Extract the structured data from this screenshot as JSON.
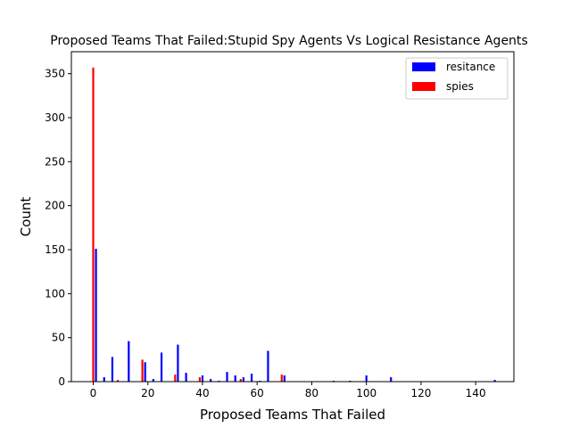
{
  "chart_data": {
    "type": "bar",
    "title": "Proposed Teams That Failed:Stupid Spy Agents Vs Logical Resistance Agents",
    "xlabel": "Proposed Teams That Failed",
    "ylabel": "Count",
    "xlim": [
      -8,
      154
    ],
    "ylim": [
      0,
      375
    ],
    "xticks": [
      0,
      20,
      40,
      60,
      80,
      100,
      120,
      140
    ],
    "yticks": [
      0,
      50,
      100,
      150,
      200,
      250,
      300,
      350
    ],
    "grid": false,
    "legend_position": "top-right",
    "series": [
      {
        "name": "resitance",
        "color": "#0000ff",
        "points": [
          {
            "x": 1,
            "y": 151
          },
          {
            "x": 4,
            "y": 5
          },
          {
            "x": 7,
            "y": 28
          },
          {
            "x": 13,
            "y": 46
          },
          {
            "x": 19,
            "y": 22
          },
          {
            "x": 22,
            "y": 3
          },
          {
            "x": 25,
            "y": 33
          },
          {
            "x": 31,
            "y": 42
          },
          {
            "x": 34,
            "y": 10
          },
          {
            "x": 40,
            "y": 7
          },
          {
            "x": 43,
            "y": 3
          },
          {
            "x": 46,
            "y": 1
          },
          {
            "x": 49,
            "y": 11
          },
          {
            "x": 52,
            "y": 7
          },
          {
            "x": 55,
            "y": 5
          },
          {
            "x": 58,
            "y": 9
          },
          {
            "x": 61,
            "y": 1
          },
          {
            "x": 64,
            "y": 35
          },
          {
            "x": 70,
            "y": 7
          },
          {
            "x": 88,
            "y": 1
          },
          {
            "x": 94,
            "y": 1
          },
          {
            "x": 100,
            "y": 7
          },
          {
            "x": 109,
            "y": 5
          },
          {
            "x": 147,
            "y": 2
          }
        ]
      },
      {
        "name": "spies",
        "color": "#ff0000",
        "points": [
          {
            "x": 0,
            "y": 357
          },
          {
            "x": 9,
            "y": 2
          },
          {
            "x": 18,
            "y": 25
          },
          {
            "x": 30,
            "y": 8
          },
          {
            "x": 39,
            "y": 5
          },
          {
            "x": 54,
            "y": 3
          },
          {
            "x": 69,
            "y": 8
          }
        ]
      }
    ]
  }
}
